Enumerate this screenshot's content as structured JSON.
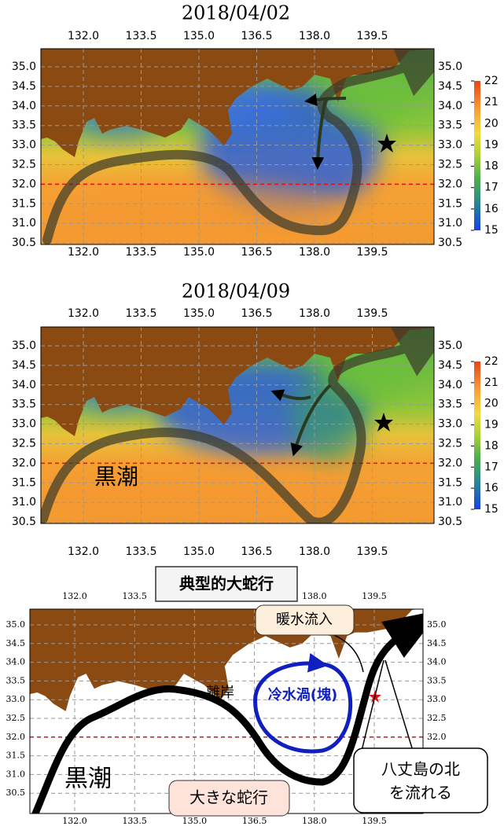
{
  "panels": [
    {
      "title": "2018/04/02",
      "lon_ticks": [
        "132.0",
        "133.5",
        "135.0",
        "136.5",
        "138.0",
        "139.5"
      ],
      "lat_ticks": [
        "35.0",
        "34.5",
        "34.0",
        "33.5",
        "33.0",
        "32.5",
        "32.0",
        "31.5",
        "31.0",
        "30.5"
      ],
      "colorbar_ticks": [
        22,
        21,
        20,
        19,
        18,
        17,
        16,
        15
      ]
    },
    {
      "title": "2018/04/09",
      "lon_ticks": [
        "132.0",
        "133.5",
        "135.0",
        "136.5",
        "138.0",
        "139.5"
      ],
      "lat_ticks": [
        "35.0",
        "34.5",
        "34.0",
        "33.5",
        "33.0",
        "32.5",
        "32.0",
        "31.5",
        "31.0",
        "30.5"
      ],
      "colorbar_ticks": [
        22,
        21,
        20,
        19,
        18,
        17,
        16,
        15
      ],
      "label": "黒潮"
    }
  ],
  "schematic": {
    "title": "典型的大蛇行",
    "lon_ticks": [
      "132.0",
      "133.5",
      "135.0",
      "136.5",
      "138.0",
      "139.5"
    ],
    "lat_ticks": [
      "35.0",
      "34.5",
      "34.0",
      "33.5",
      "33.0",
      "32.5",
      "32.0",
      "31.5",
      "31.0",
      "30.5"
    ],
    "labels": {
      "warm_inflow": "暖水流入",
      "cold_eddy": "冷水渦(塊)",
      "offshore": "離岸",
      "kuroshio": "黒潮",
      "meander": "大きな蛇行",
      "hachijo": [
        "八丈島の北",
        "を流れる"
      ]
    }
  }
}
